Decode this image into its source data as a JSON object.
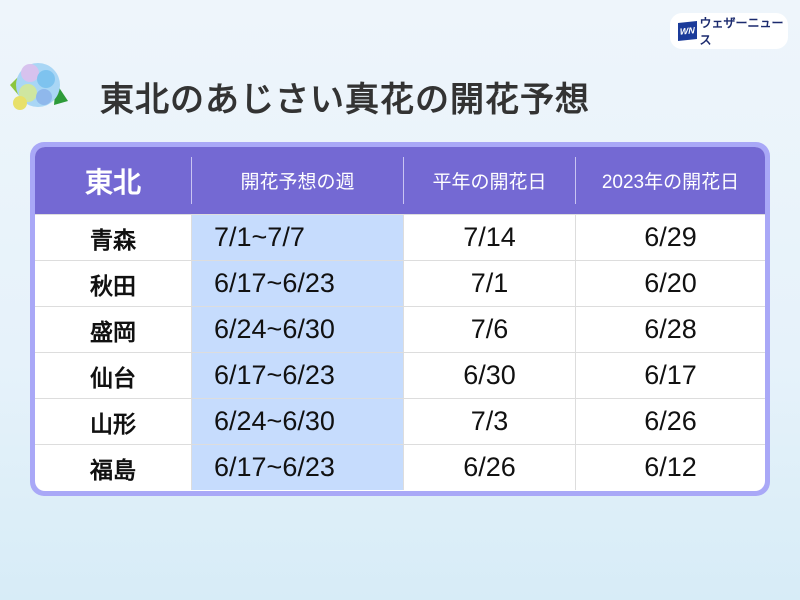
{
  "logo": {
    "mark": "WN",
    "text": "ウェザーニュース"
  },
  "title": "東北のあじさい真花の開花予想",
  "table": {
    "headers": [
      "東北",
      "開花予想の週",
      "平年の開花日",
      "2023年の開花日"
    ],
    "rows": [
      [
        "青森",
        "7/1~7/7",
        "7/14",
        "6/29"
      ],
      [
        "秋田",
        "6/17~6/23",
        "7/1",
        "6/20"
      ],
      [
        "盛岡",
        "6/24~6/30",
        "7/6",
        "6/28"
      ],
      [
        "仙台",
        "6/17~6/23",
        "6/30",
        "6/17"
      ],
      [
        "山形",
        "6/24~6/30",
        "7/3",
        "6/26"
      ],
      [
        "福島",
        "6/17~6/23",
        "6/26",
        "6/12"
      ]
    ]
  },
  "colors": {
    "header": "#7469d3",
    "border": "#a9a8f7",
    "highlight_column": "#c6dcfd"
  }
}
